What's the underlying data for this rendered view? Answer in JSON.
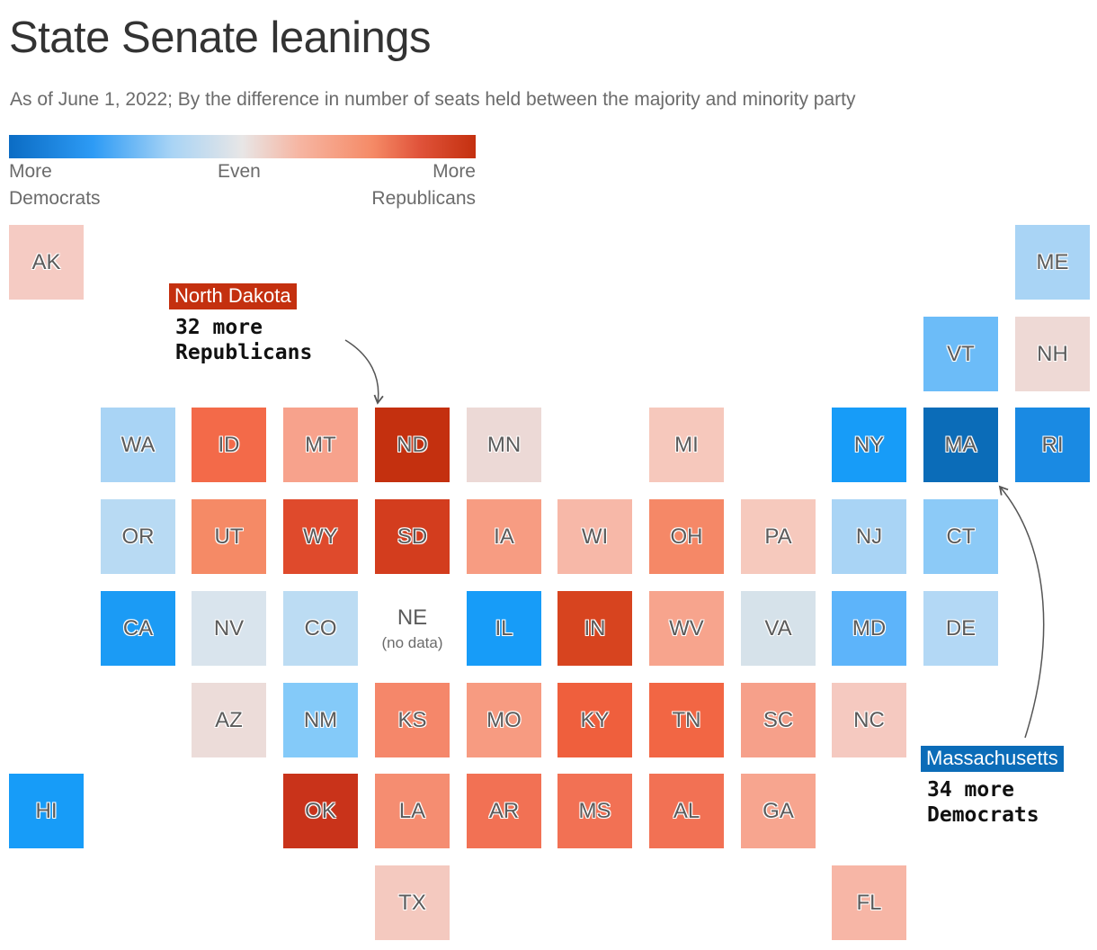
{
  "title": "State Senate leanings",
  "subtitle": "As of June 1, 2022; By the difference in number of seats held between the majority and minority party",
  "legend": {
    "left_line1": "More",
    "left_line2": "Democrats",
    "center": "Even",
    "right_line1": "More",
    "right_line2": "Republicans"
  },
  "colors": {
    "dem_strong": "#0b6cc4",
    "dem_mid": "#2d9bf5",
    "even": "#e8e6e6",
    "rep_mid": "#f58a66",
    "rep_strong": "#c4300f"
  },
  "states": [
    {
      "abbr": "AK",
      "row": 0,
      "col": 0,
      "color": "#f5cbc3"
    },
    {
      "abbr": "ME",
      "row": 0,
      "col": 11,
      "color": "#a9d4f5"
    },
    {
      "abbr": "VT",
      "row": 1,
      "col": 10,
      "color": "#6cbcf8"
    },
    {
      "abbr": "NH",
      "row": 1,
      "col": 11,
      "color": "#eed9d5"
    },
    {
      "abbr": "WA",
      "row": 2,
      "col": 1,
      "color": "#a9d4f5"
    },
    {
      "abbr": "ID",
      "row": 2,
      "col": 2,
      "color": "#f36a49"
    },
    {
      "abbr": "MT",
      "row": 2,
      "col": 3,
      "color": "#f7a28c"
    },
    {
      "abbr": "ND",
      "row": 2,
      "col": 4,
      "color": "#c4300f"
    },
    {
      "abbr": "MN",
      "row": 2,
      "col": 5,
      "color": "#ecd9d6"
    },
    {
      "abbr": "MI",
      "row": 2,
      "col": 7,
      "color": "#f6c8bc"
    },
    {
      "abbr": "NY",
      "row": 2,
      "col": 9,
      "color": "#179cf8"
    },
    {
      "abbr": "MA",
      "row": 2,
      "col": 10,
      "color": "#0b6cb8"
    },
    {
      "abbr": "RI",
      "row": 2,
      "col": 11,
      "color": "#1a8ae3"
    },
    {
      "abbr": "OR",
      "row": 3,
      "col": 1,
      "color": "#b8daf3"
    },
    {
      "abbr": "UT",
      "row": 3,
      "col": 2,
      "color": "#f58a66"
    },
    {
      "abbr": "WY",
      "row": 3,
      "col": 3,
      "color": "#df4a2c"
    },
    {
      "abbr": "SD",
      "row": 3,
      "col": 4,
      "color": "#d33d1e"
    },
    {
      "abbr": "IA",
      "row": 3,
      "col": 5,
      "color": "#f79c82"
    },
    {
      "abbr": "WI",
      "row": 3,
      "col": 6,
      "color": "#f7b8a8"
    },
    {
      "abbr": "OH",
      "row": 3,
      "col": 7,
      "color": "#f58867"
    },
    {
      "abbr": "PA",
      "row": 3,
      "col": 8,
      "color": "#f6c9bd"
    },
    {
      "abbr": "NJ",
      "row": 3,
      "col": 9,
      "color": "#a9d4f5"
    },
    {
      "abbr": "CT",
      "row": 3,
      "col": 10,
      "color": "#8ccaf7"
    },
    {
      "abbr": "CA",
      "row": 4,
      "col": 1,
      "color": "#1b9bf5"
    },
    {
      "abbr": "NV",
      "row": 4,
      "col": 2,
      "color": "#d9e4ed"
    },
    {
      "abbr": "CO",
      "row": 4,
      "col": 3,
      "color": "#bcdcf3"
    },
    {
      "abbr": "NE",
      "row": 4,
      "col": 4,
      "color": "#ffffff",
      "note": "(no data)"
    },
    {
      "abbr": "IL",
      "row": 4,
      "col": 5,
      "color": "#179cf8"
    },
    {
      "abbr": "IN",
      "row": 4,
      "col": 6,
      "color": "#d7441f"
    },
    {
      "abbr": "WV",
      "row": 4,
      "col": 7,
      "color": "#f7a48d"
    },
    {
      "abbr": "VA",
      "row": 4,
      "col": 8,
      "color": "#d6e2ea"
    },
    {
      "abbr": "MD",
      "row": 4,
      "col": 9,
      "color": "#5db4fa"
    },
    {
      "abbr": "DE",
      "row": 4,
      "col": 10,
      "color": "#b3d8f5"
    },
    {
      "abbr": "AZ",
      "row": 5,
      "col": 2,
      "color": "#ecdcd9"
    },
    {
      "abbr": "NM",
      "row": 5,
      "col": 3,
      "color": "#84caf9"
    },
    {
      "abbr": "KS",
      "row": 5,
      "col": 4,
      "color": "#f5876a"
    },
    {
      "abbr": "MO",
      "row": 5,
      "col": 5,
      "color": "#f79b81"
    },
    {
      "abbr": "KY",
      "row": 5,
      "col": 6,
      "color": "#ef5f3d"
    },
    {
      "abbr": "TN",
      "row": 5,
      "col": 7,
      "color": "#f26644"
    },
    {
      "abbr": "SC",
      "row": 5,
      "col": 8,
      "color": "#f6a08a"
    },
    {
      "abbr": "NC",
      "row": 5,
      "col": 9,
      "color": "#f5c9c0"
    },
    {
      "abbr": "HI",
      "row": 6,
      "col": 0,
      "color": "#179cf8"
    },
    {
      "abbr": "OK",
      "row": 6,
      "col": 3,
      "color": "#c9331a"
    },
    {
      "abbr": "LA",
      "row": 6,
      "col": 4,
      "color": "#f58d71"
    },
    {
      "abbr": "AR",
      "row": 6,
      "col": 5,
      "color": "#f27154"
    },
    {
      "abbr": "MS",
      "row": 6,
      "col": 6,
      "color": "#f27154"
    },
    {
      "abbr": "AL",
      "row": 6,
      "col": 7,
      "color": "#f27154"
    },
    {
      "abbr": "GA",
      "row": 6,
      "col": 8,
      "color": "#f7a58f"
    },
    {
      "abbr": "TX",
      "row": 7,
      "col": 4,
      "color": "#f4c9bf"
    },
    {
      "abbr": "FL",
      "row": 7,
      "col": 9,
      "color": "#f7b6a6"
    }
  ],
  "annotations": {
    "nd": {
      "label": "North Dakota",
      "line1": "32 more",
      "line2": "Republicans",
      "color": "#c4300f"
    },
    "ma": {
      "label": "Massachusetts",
      "line1": "34 more",
      "line2": "Democrats",
      "color": "#0b6cb8"
    }
  }
}
